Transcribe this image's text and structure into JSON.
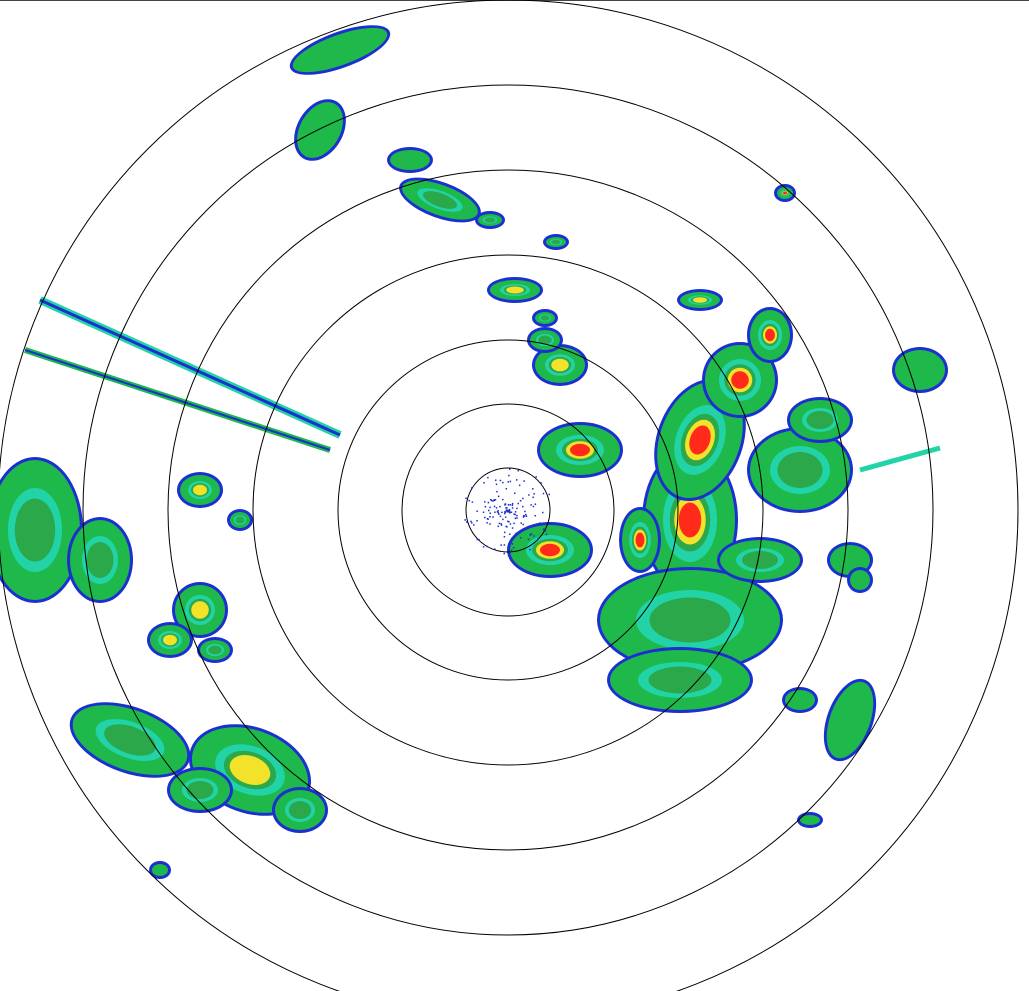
{
  "radar": {
    "type": "reflectivity-ppi",
    "range_ring_count": 7,
    "ring_color": "#000000",
    "palette": {
      "weak": "#1c2fd0",
      "light": "#22d3a8",
      "moderate": "#1fb84a",
      "moderate_dark": "#2aa84a",
      "heavy": "#f2e22a",
      "intense": "#ff2a1a",
      "orange": "#f28a1a"
    }
  }
}
